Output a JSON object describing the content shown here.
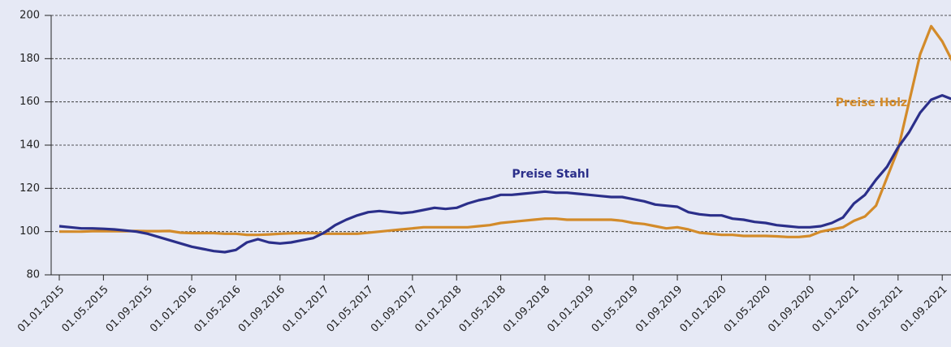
{
  "chart_data": {
    "type": "line",
    "categories": [
      "01.01.2015",
      null,
      null,
      null,
      "01.05.2015",
      null,
      null,
      null,
      "01.09.2015",
      null,
      null,
      null,
      "01.01.2016",
      null,
      null,
      null,
      "01.05.2016",
      null,
      null,
      null,
      "01.09.2016",
      null,
      null,
      null,
      "01.01.2017",
      null,
      null,
      null,
      "01.05.2017",
      null,
      null,
      null,
      "01.09.2017",
      null,
      null,
      null,
      "01.01.2018",
      null,
      null,
      null,
      "01.05.2018",
      null,
      null,
      null,
      "01.09.2018",
      null,
      null,
      null,
      "01.01.2019",
      null,
      null,
      null,
      "01.05.2019",
      null,
      null,
      null,
      "01.09.2019",
      null,
      null,
      null,
      "01.01.2020",
      null,
      null,
      null,
      "01.05.2020",
      null,
      null,
      null,
      "01.09.2020",
      null,
      null,
      null,
      "01.01.2021",
      null,
      null,
      null,
      "01.05.2021",
      null,
      null,
      null,
      "01.09.2021",
      null
    ],
    "series": [
      {
        "name": "Preise Stahl",
        "color": "#2b2f8a",
        "values": [
          102.5,
          102,
          101.5,
          101.5,
          101.3,
          101,
          100.5,
          100,
          99,
          97.5,
          96,
          94.5,
          93,
          92,
          91,
          90.5,
          91.5,
          95,
          96.5,
          95,
          94.5,
          95,
          96,
          97,
          99.5,
          103,
          105.5,
          107.5,
          109,
          109.5,
          109,
          108.5,
          109,
          110,
          111,
          110.5,
          111,
          113,
          114.5,
          115.5,
          117,
          117,
          117.5,
          118,
          118.5,
          118,
          118,
          117.5,
          117,
          116.5,
          116,
          116,
          115,
          114,
          112.5,
          112,
          111.5,
          109,
          108,
          107.5,
          107.5,
          106,
          105.5,
          104.5,
          104,
          103,
          102.5,
          102,
          102,
          102.5,
          104,
          106.5,
          113,
          117,
          124,
          130,
          139,
          146,
          155,
          161,
          163,
          161
        ]
      },
      {
        "name": "Preise Holz",
        "color": "#d38b2a",
        "values": [
          100,
          100,
          100,
          100.2,
          100.2,
          100.2,
          100.2,
          100.3,
          100.2,
          100.2,
          100.3,
          99.5,
          99.3,
          99.3,
          99.3,
          99,
          99,
          98.5,
          98.5,
          98.7,
          99,
          99.2,
          99.3,
          99.3,
          99,
          99,
          99,
          99,
          99.5,
          100,
          100.5,
          101,
          101.5,
          102,
          102,
          102,
          102,
          102,
          102.5,
          103,
          104,
          104.5,
          105,
          105.5,
          106,
          106,
          105.5,
          105.5,
          105.5,
          105.5,
          105.5,
          105,
          104,
          103.5,
          102.5,
          101.5,
          102,
          101,
          99.5,
          99,
          98.5,
          98.5,
          98,
          98,
          98,
          97.8,
          97.5,
          97.5,
          98,
          100,
          101,
          102,
          105,
          107,
          112,
          125,
          138,
          160,
          182,
          195,
          188,
          178
        ]
      }
    ],
    "ylim": [
      80,
      200
    ],
    "yticks": [
      80,
      100,
      120,
      140,
      160,
      180,
      200
    ],
    "grid": true
  }
}
